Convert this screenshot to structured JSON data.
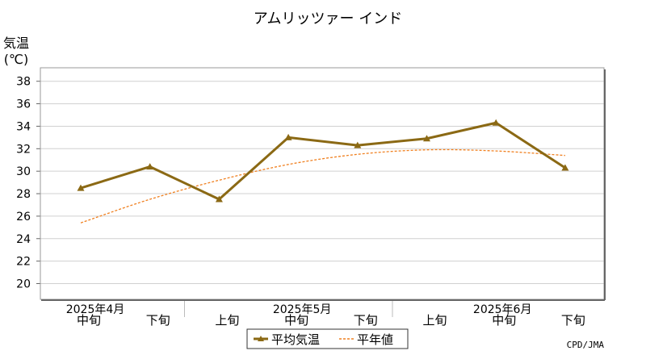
{
  "chart_data": {
    "type": "line",
    "title": "アムリッツァー インド",
    "ylabel_line1": "気温",
    "ylabel_line2": "(℃)",
    "ylim": [
      18.6,
      39.2
    ],
    "yticks": [
      20,
      22,
      24,
      26,
      28,
      30,
      32,
      34,
      36,
      38
    ],
    "grid": true,
    "months": [
      "2025年4月",
      "2025年5月",
      "2025年6月"
    ],
    "categories": [
      "中旬",
      "下旬",
      "上旬",
      "中旬",
      "下旬",
      "上旬",
      "中旬",
      "下旬"
    ],
    "series": [
      {
        "name": "平均気温",
        "values": [
          28.5,
          30.4,
          27.5,
          33.0,
          32.3,
          32.9,
          34.3,
          30.3
        ],
        "color": "#8b6914",
        "style": "solid"
      },
      {
        "name": "平年値",
        "values": [
          25.4,
          27.5,
          29.2,
          30.6,
          31.5,
          31.9,
          31.8,
          31.4
        ],
        "color": "#f08020",
        "style": "dashed"
      }
    ],
    "legend_position": "bottom-center",
    "source": "CPD/JMA"
  }
}
